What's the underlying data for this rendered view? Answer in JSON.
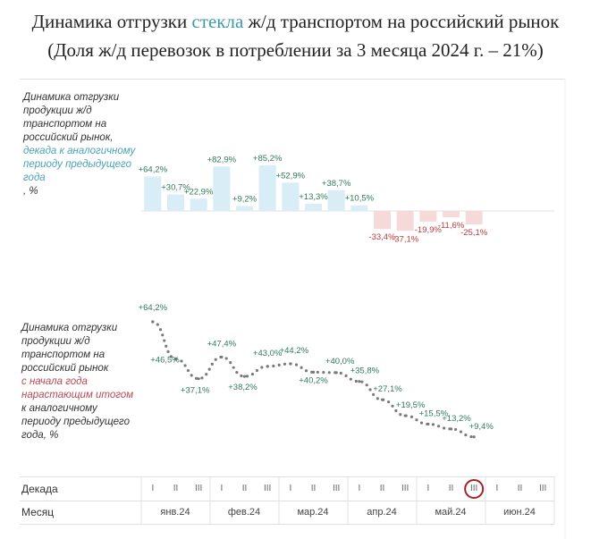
{
  "title": {
    "line1_before": "Динамика отгрузки ",
    "line1_accent": "стекла",
    "line1_after": " ж/д транспортом на российский рынок",
    "line2": "(Доля ж/д перевозок в потреблении за 3 месяца 2024 г. – 21%)"
  },
  "notes": {
    "top": [
      "Динамика отгрузки",
      "продукции ж/д",
      "транспортом на",
      "российский рынок,"
    ],
    "top_teal": [
      "декада к аналогичному",
      "периоду предыдущего"
    ],
    "top_end": "года, %",
    "top_end_teal": "года",
    "bottom": [
      "Динамика отгрузки",
      "продукции ж/д",
      "транспортом на",
      "российский рынок"
    ],
    "bottom_red": [
      "с начала года",
      "нарастающим итогом"
    ],
    "bottom_end": [
      "к аналогичному",
      "периоду предыдущего",
      "года, %"
    ]
  },
  "axis": {
    "decade_label": "Декада",
    "month_label": "Месяц",
    "months": [
      "янв.24",
      "фев.24",
      "мар.24",
      "апр.24",
      "май.24",
      "июн.24"
    ],
    "decades": [
      "I",
      "II",
      "III"
    ]
  },
  "colors": {
    "positive_bar": "#d8edf5",
    "negative_bar": "#f6dada",
    "positive_label": "#2f7a5c",
    "negative_label": "#c0393f",
    "line_dots": "#7a7a7a",
    "highlight_ring": "#a8202a"
  },
  "chart_data": [
    {
      "type": "bar",
      "categories": [
        "янв I",
        "янв II",
        "янв III",
        "фев I",
        "фев II",
        "фев III",
        "мар I",
        "мар II",
        "мар III",
        "апр I",
        "апр II",
        "апр III",
        "май I",
        "май II",
        "май III"
      ],
      "values": [
        64.2,
        30.7,
        22.9,
        82.9,
        9.2,
        85.2,
        52.9,
        13.3,
        38.7,
        10.5,
        -33.4,
        -37.1,
        -19.9,
        -11.6,
        -25.1
      ],
      "labels": [
        "+64,2%",
        "+30,7%",
        "+22,9%",
        "+82,9%",
        "+9,2%",
        "+85,2%",
        "+52,9%",
        "+13,3%",
        "+38,7%",
        "+10,5%",
        "-33,4%",
        "-37,1%",
        "-19,9%",
        "-11,6%",
        "-25,1%"
      ]
    },
    {
      "type": "line",
      "categories": [
        "янв I",
        "янв II",
        "янв III",
        "фев I",
        "фев II",
        "фев III",
        "мар I",
        "мар II",
        "мар III",
        "апр I",
        "апр II",
        "апр III",
        "май I",
        "май II",
        "май III"
      ],
      "values": [
        64.2,
        46.5,
        37.1,
        47.4,
        38.2,
        43.0,
        44.2,
        40.2,
        40.0,
        35.8,
        27.1,
        19.5,
        15.5,
        13.2,
        9.4
      ],
      "labels": [
        "+64,2%",
        "+46,5%",
        "+37,1%",
        "+47,4%",
        "+38,2%",
        "+43,0%",
        "+44,2%",
        "+40,2%",
        "+40,0%",
        "+35,8%",
        "+27,1%",
        "+19,5%",
        "+15,5%",
        "+13,2%",
        "+9,4%"
      ],
      "highlight": "май III"
    }
  ]
}
